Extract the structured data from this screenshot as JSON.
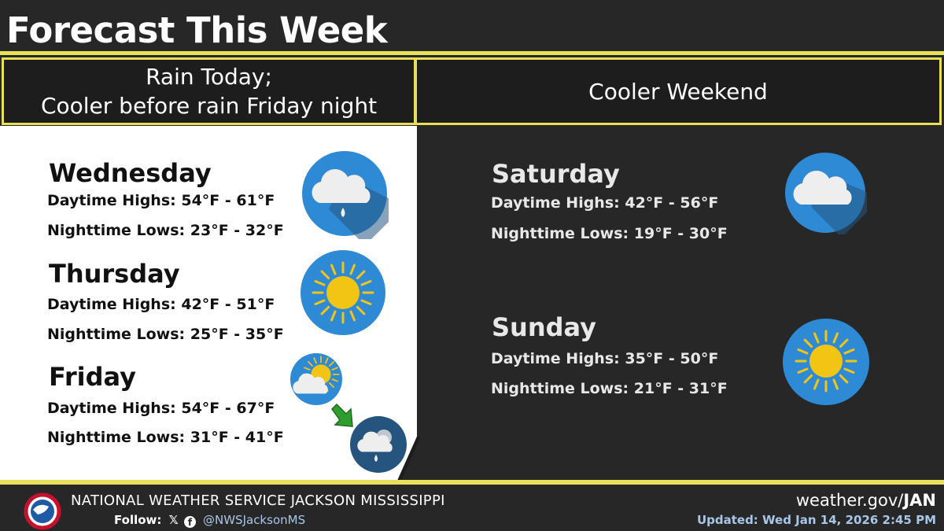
{
  "title": "Forecast This Week",
  "sections": {
    "left_header": [
      "Rain Today;",
      "Cooler before rain Friday night"
    ],
    "right_header": "Cooler Weekend"
  },
  "days": [
    {
      "name": "Wednesday",
      "highs": "Daytime Highs: 54°F - 61°F",
      "lows": "Nighttime Lows: 23°F - 32°F",
      "icon": "rain-cloud-icon"
    },
    {
      "name": "Thursday",
      "highs": "Daytime Highs: 42°F - 51°F",
      "lows": "Nighttime Lows: 25°F - 35°F",
      "icon": "sun-icon"
    },
    {
      "name": "Friday",
      "highs": "Daytime Highs: 54°F - 67°F",
      "lows": "Nighttime Lows: 31°F - 41°F",
      "icon": "partly-cloudy-to-rain-icon"
    },
    {
      "name": "Saturday",
      "highs": "Daytime Highs: 42°F - 56°F",
      "lows": "Nighttime Lows: 19°F - 30°F",
      "icon": "cloud-icon"
    },
    {
      "name": "Sunday",
      "highs": "Daytime Highs: 35°F - 50°F",
      "lows": "Nighttime Lows: 21°F - 31°F",
      "icon": "sun-icon"
    }
  ],
  "footer": {
    "office": "NATIONAL WEATHER SERVICE JACKSON MISSISSIPPI",
    "follow_label": "Follow:",
    "x_icon": "𝕏",
    "handle": "@NWSJacksonMS",
    "site_prefix": "weather.gov/",
    "site_office": "JAN",
    "updated": "Updated: Wed Jan 14, 2026 2:45 PM"
  },
  "colors": {
    "accent": "#e8e05a",
    "icon_blue": "#2f8ad6",
    "icon_dark": "#25557f",
    "sun": "#f2c413"
  }
}
